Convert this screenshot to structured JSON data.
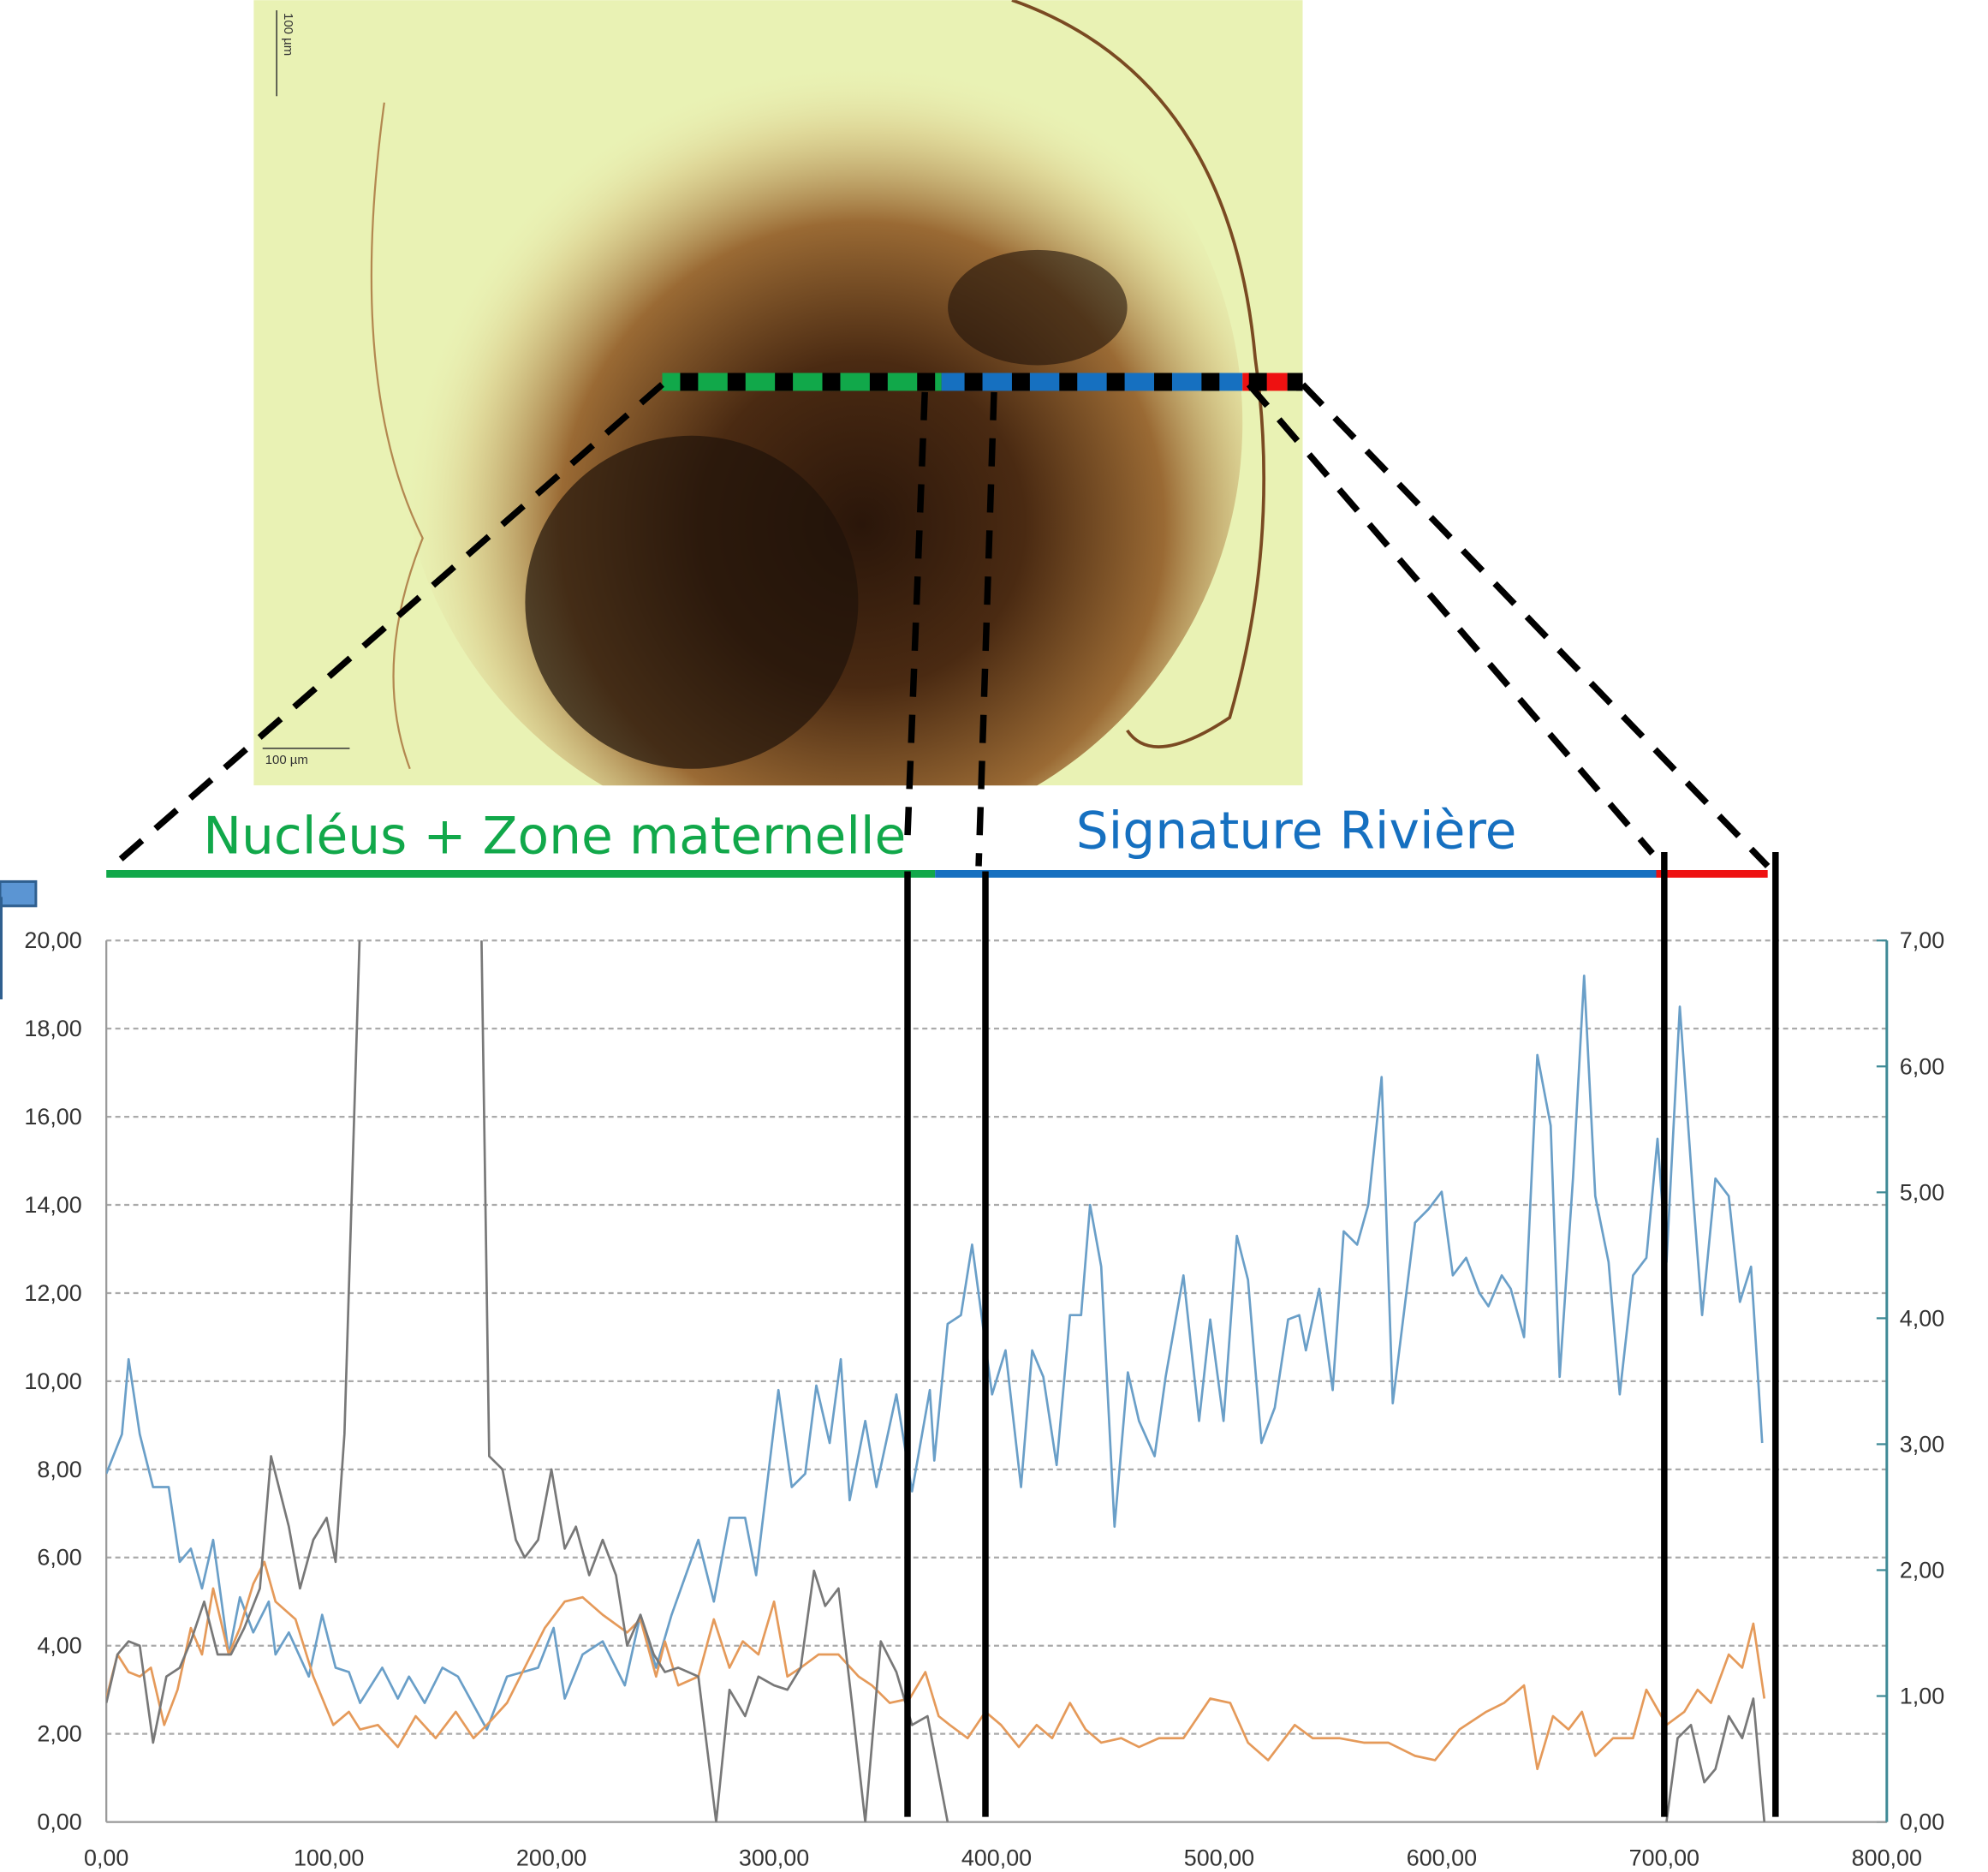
{
  "image": {
    "scale_bar_top": "100 µm",
    "scale_bar_bottom": "100 µm"
  },
  "zones": [
    {
      "label": "Nucléus + Zone maternelle",
      "color": "#11a84a"
    },
    {
      "label": "Signature Rivière",
      "color": "#1670c0"
    },
    {
      "label": "",
      "color": "#ee1111"
    }
  ],
  "chart_data": {
    "type": "line",
    "title": "",
    "xlabel": "",
    "ylabel": "",
    "xlim": [
      0,
      800
    ],
    "ylim_left": [
      0,
      20
    ],
    "ylim_right": [
      0,
      7
    ],
    "grid": true,
    "x_ticks": [
      "0,00",
      "100,00",
      "200,00",
      "300,00",
      "400,00",
      "500,00",
      "600,00",
      "700,00",
      "800,00"
    ],
    "y_ticks_left": [
      "0,00",
      "2,00",
      "4,00",
      "6,00",
      "8,00",
      "10,00",
      "12,00",
      "14,00",
      "16,00",
      "18,00",
      "20,00"
    ],
    "y_ticks_right": [
      "0,00",
      "1,00",
      "2,00",
      "3,00",
      "4,00",
      "5,00",
      "6,00",
      "7,00"
    ],
    "axis_color_right": "#3f8a96",
    "zone_boundaries_x": [
      360,
      395,
      700,
      750
    ],
    "series": [
      {
        "color": "#6a9fc8",
        "axis": "left",
        "x": [
          0,
          7,
          10,
          15,
          21,
          28,
          33,
          38,
          43,
          48,
          55,
          60,
          66,
          73,
          76,
          82,
          91,
          97,
          103,
          109,
          114,
          124,
          131,
          136,
          143,
          151,
          158,
          171,
          180,
          194,
          201,
          206,
          214,
          223,
          233,
          240,
          247,
          254,
          266,
          273,
          280,
          287,
          292,
          302,
          308,
          314,
          319,
          325,
          330,
          334,
          341,
          346,
          355,
          362,
          370,
          372,
          378,
          384,
          389,
          398,
          404,
          411,
          416,
          421,
          427,
          433,
          438,
          442,
          447,
          453,
          459,
          464,
          471,
          476,
          484,
          491,
          496,
          502,
          508,
          513,
          519,
          525,
          531,
          536,
          539,
          545,
          551,
          556,
          562,
          567,
          573,
          578,
          588,
          594,
          600,
          605,
          611,
          617,
          621,
          627,
          631,
          637,
          643,
          649,
          653,
          659,
          664,
          669,
          675,
          680,
          686,
          692,
          697,
          701,
          707,
          713,
          717,
          723,
          729,
          734,
          739,
          744
        ],
        "y": [
          7.9,
          8.8,
          10.5,
          8.8,
          7.6,
          7.6,
          5.9,
          6.2,
          5.3,
          6.4,
          3.8,
          5.1,
          4.3,
          5.0,
          3.8,
          4.3,
          3.3,
          4.7,
          3.5,
          3.4,
          2.7,
          3.5,
          2.8,
          3.3,
          2.7,
          3.5,
          3.3,
          2.1,
          3.3,
          3.5,
          4.4,
          2.8,
          3.8,
          4.1,
          3.1,
          4.7,
          3.5,
          4.7,
          6.4,
          5.0,
          6.9,
          6.9,
          5.6,
          9.8,
          7.6,
          7.9,
          9.9,
          8.6,
          10.5,
          7.3,
          9.1,
          7.6,
          9.7,
          7.5,
          9.8,
          8.2,
          11.3,
          11.5,
          13.1,
          9.7,
          10.7,
          7.6,
          10.7,
          10.1,
          8.1,
          11.5,
          11.5,
          14.0,
          12.6,
          6.7,
          10.2,
          9.1,
          8.3,
          10.1,
          12.4,
          9.1,
          11.4,
          9.1,
          13.3,
          12.3,
          8.6,
          9.4,
          11.4,
          11.5,
          10.7,
          12.1,
          9.8,
          13.4,
          13.1,
          14.0,
          16.9,
          9.5,
          13.6,
          13.9,
          14.3,
          12.4,
          12.8,
          12.0,
          11.7,
          12.4,
          12.1,
          11.0,
          17.4,
          15.8,
          10.1,
          14.6,
          19.2,
          14.2,
          12.7,
          9.7,
          12.4,
          12.8,
          15.5,
          12.7,
          18.5,
          14.2,
          11.5,
          14.6,
          14.2,
          11.8,
          12.6,
          8.6
        ]
      },
      {
        "color": "#e59a5a",
        "axis": "left",
        "x": [
          0,
          5,
          10,
          15,
          20,
          26,
          32,
          38,
          43,
          48,
          55,
          60,
          66,
          71,
          76,
          85,
          93,
          102,
          109,
          114,
          122,
          131,
          139,
          148,
          157,
          165,
          171,
          180,
          188,
          197,
          206,
          214,
          223,
          234,
          240,
          247,
          251,
          257,
          266,
          273,
          280,
          286,
          293,
          300,
          306,
          312,
          320,
          329,
          338,
          344,
          352,
          361,
          368,
          374,
          379,
          387,
          395,
          402,
          410,
          418,
          425,
          433,
          440,
          447,
          456,
          464,
          473,
          484,
          496,
          505,
          513,
          522,
          534,
          542,
          554,
          565,
          576,
          588,
          597,
          608,
          620,
          628,
          637,
          643,
          650,
          657,
          663,
          669,
          677,
          686,
          692,
          701,
          709,
          715,
          721,
          729,
          735,
          740,
          745
        ],
        "y": [
          2.8,
          3.8,
          3.4,
          3.3,
          3.5,
          2.2,
          3.0,
          4.4,
          3.8,
          5.3,
          3.8,
          4.4,
          5.4,
          5.9,
          5.0,
          4.6,
          3.3,
          2.2,
          2.5,
          2.1,
          2.2,
          1.7,
          2.4,
          1.9,
          2.5,
          1.9,
          2.2,
          2.7,
          3.5,
          4.4,
          5.0,
          5.1,
          4.7,
          4.3,
          4.6,
          3.3,
          4.1,
          3.1,
          3.3,
          4.6,
          3.5,
          4.1,
          3.8,
          5.0,
          3.3,
          3.5,
          3.8,
          3.8,
          3.3,
          3.1,
          2.7,
          2.8,
          3.4,
          2.4,
          2.2,
          1.9,
          2.5,
          2.2,
          1.7,
          2.2,
          1.9,
          2.7,
          2.1,
          1.8,
          1.9,
          1.7,
          1.9,
          1.9,
          2.8,
          2.7,
          1.8,
          1.4,
          2.2,
          1.9,
          1.9,
          1.8,
          1.8,
          1.5,
          1.4,
          2.1,
          2.5,
          2.7,
          3.1,
          1.2,
          2.4,
          2.1,
          2.5,
          1.5,
          1.9,
          1.9,
          3.0,
          2.2,
          2.5,
          3.0,
          2.7,
          3.8,
          3.5,
          4.5,
          2.8
        ]
      },
      {
        "color": "#787878",
        "axis": "left",
        "x": [
          0,
          5,
          10,
          15,
          21,
          27,
          33,
          38,
          44,
          50,
          56,
          62,
          69,
          74,
          82,
          87,
          93,
          99,
          103,
          107,
          115,
          168,
          172,
          178,
          184,
          188,
          194,
          200,
          206,
          211,
          217,
          223,
          229,
          234,
          240,
          246,
          251,
          257,
          266,
          274,
          280,
          287,
          293,
          300,
          306,
          312,
          318,
          323,
          329,
          335,
          341,
          348,
          355,
          362,
          369,
          378,
          null,
          701,
          706,
          712,
          718,
          723,
          729,
          735,
          740,
          745
        ],
        "y": [
          2.7,
          3.8,
          4.1,
          4.0,
          1.8,
          3.3,
          3.5,
          4.1,
          5.0,
          3.8,
          3.8,
          4.4,
          5.3,
          8.3,
          6.7,
          5.3,
          6.4,
          6.9,
          5.9,
          8.8,
          22,
          22,
          8.3,
          8.0,
          6.4,
          6.0,
          6.4,
          8.0,
          6.2,
          6.7,
          5.6,
          6.4,
          5.6,
          4.0,
          4.7,
          3.8,
          3.4,
          3.5,
          3.3,
          0,
          3.0,
          2.4,
          3.3,
          3.1,
          3.0,
          3.5,
          5.7,
          4.9,
          5.3,
          2.7,
          0,
          4.1,
          3.4,
          2.2,
          2.4,
          0,
          null,
          0,
          1.9,
          2.2,
          0.9,
          1.2,
          2.4,
          1.9,
          2.8,
          0
        ]
      }
    ]
  }
}
